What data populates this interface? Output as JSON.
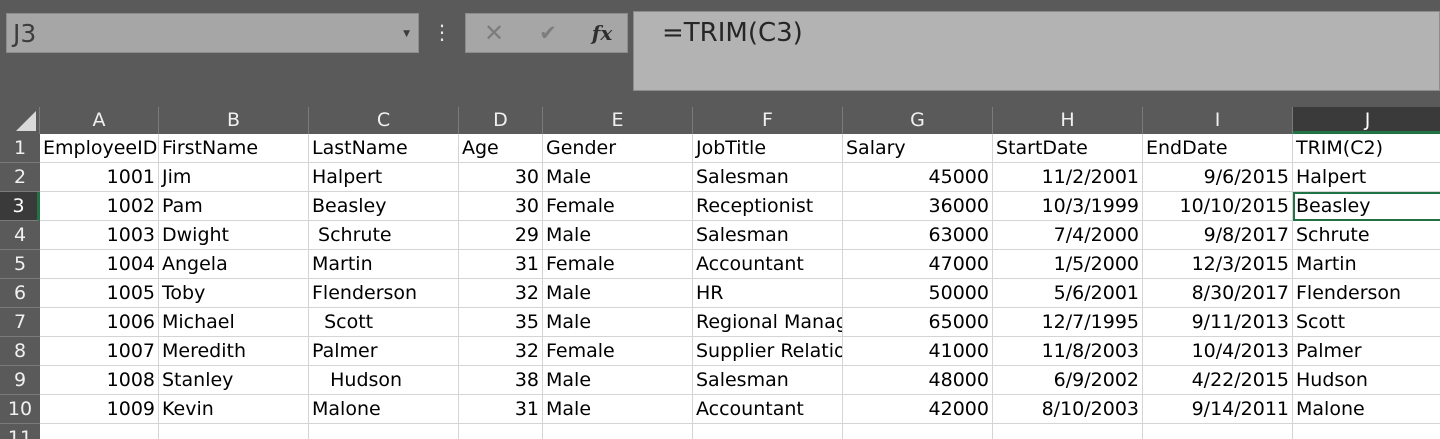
{
  "name_box": "J3",
  "formula": "=TRIM(C3)",
  "columns": [
    "A",
    "B",
    "C",
    "D",
    "E",
    "F",
    "G",
    "H",
    "I",
    "J"
  ],
  "selected_column": "J",
  "selected_row": 3,
  "rows": [
    {
      "n": "1",
      "cells": [
        "EmployeeID",
        "FirstName",
        "LastName",
        "Age",
        "Gender",
        "JobTitle",
        "Salary",
        "StartDate",
        "EndDate",
        "TRIM(C2)"
      ]
    },
    {
      "n": "2",
      "cells": [
        "1001",
        "Jim",
        "Halpert",
        "30",
        "Male",
        "Salesman",
        "45000",
        "11/2/2001",
        "9/6/2015",
        "Halpert"
      ]
    },
    {
      "n": "3",
      "cells": [
        "1002",
        "Pam",
        "Beasley",
        "30",
        "Female",
        "Receptionist",
        "36000",
        "10/3/1999",
        "10/10/2015",
        "Beasley"
      ]
    },
    {
      "n": "4",
      "cells": [
        "1003",
        "Dwight",
        " Schrute",
        "29",
        "Male",
        "Salesman",
        "63000",
        "7/4/2000",
        "9/8/2017",
        "Schrute"
      ]
    },
    {
      "n": "5",
      "cells": [
        "1004",
        "Angela",
        "Martin",
        "31",
        "Female",
        "Accountant",
        "47000",
        "1/5/2000",
        "12/3/2015",
        "Martin"
      ]
    },
    {
      "n": "6",
      "cells": [
        "1005",
        "Toby",
        "Flenderson",
        "32",
        "Male",
        "HR",
        "50000",
        "5/6/2001",
        "8/30/2017",
        "Flenderson"
      ]
    },
    {
      "n": "7",
      "cells": [
        "1006",
        "Michael",
        "  Scott",
        "35",
        "Male",
        "Regional Manag",
        "65000",
        "12/7/1995",
        "9/11/2013",
        "Scott"
      ]
    },
    {
      "n": "8",
      "cells": [
        "1007",
        "Meredith",
        "Palmer",
        "32",
        "Female",
        "Supplier Relation",
        "41000",
        "11/8/2003",
        "10/4/2013",
        "Palmer"
      ]
    },
    {
      "n": "9",
      "cells": [
        "1008",
        "Stanley",
        "   Hudson",
        "38",
        "Male",
        "Salesman",
        "48000",
        "6/9/2002",
        "4/22/2015",
        "Hudson"
      ]
    },
    {
      "n": "10",
      "cells": [
        "1009",
        "Kevin",
        "Malone",
        "31",
        "Male",
        "Accountant",
        "42000",
        "8/10/2003",
        "9/14/2011",
        "Malone"
      ]
    },
    {
      "n": "11",
      "cells": [
        "",
        "",
        "",
        "",
        "",
        "",
        "",
        "",
        "",
        ""
      ]
    }
  ],
  "icons": {
    "cancel": "close-icon",
    "enter": "checkmark-icon",
    "function": "fx-icon",
    "dropdown": "chevron-down-icon",
    "more": "more-vertical-icon"
  },
  "icon_glyphs": {
    "cancel": "✕",
    "enter": "✔",
    "function": "fx",
    "dropdown": "▼",
    "more": "⋮"
  }
}
